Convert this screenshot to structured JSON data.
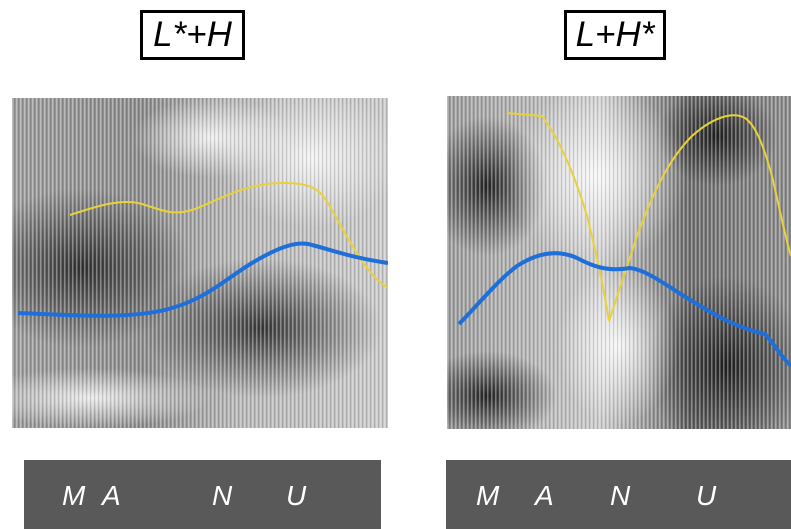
{
  "panels": [
    {
      "title": "L*+H",
      "segments": [
        "M",
        "A",
        "N",
        "U"
      ],
      "colors": {
        "pitch_contour": "#1e6fd9",
        "intensity_contour": "#e8d23a",
        "tier_bg": "#595959"
      }
    },
    {
      "title": "L+H*",
      "segments": [
        "M",
        "A",
        "N",
        "U"
      ],
      "colors": {
        "pitch_contour": "#1e6fd9",
        "intensity_contour": "#e8d23a",
        "tier_bg": "#595959"
      }
    }
  ]
}
